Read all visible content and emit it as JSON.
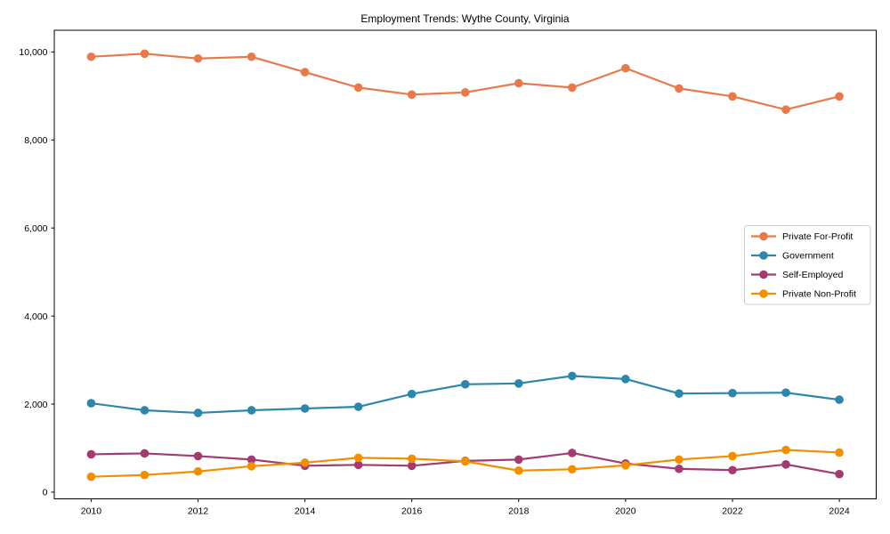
{
  "chart_data": {
    "type": "line",
    "title": "Employment Trends: Wythe County, Virginia",
    "xlabel": "",
    "ylabel": "",
    "x": [
      2010,
      2011,
      2012,
      2013,
      2014,
      2015,
      2016,
      2017,
      2018,
      2019,
      2020,
      2021,
      2022,
      2023,
      2024
    ],
    "series": [
      {
        "name": "Private For-Profit",
        "color": "#E8794B",
        "values": [
          9890,
          9960,
          9850,
          9890,
          9540,
          9190,
          9030,
          9080,
          9290,
          9190,
          9630,
          9170,
          8990,
          8690,
          8990
        ]
      },
      {
        "name": "Government",
        "color": "#2E86AB",
        "values": [
          2020,
          1860,
          1800,
          1860,
          1900,
          1940,
          2230,
          2450,
          2470,
          2640,
          2570,
          2240,
          2250,
          2260,
          2100
        ]
      },
      {
        "name": "Self-Employed",
        "color": "#A23B72",
        "values": [
          860,
          880,
          820,
          740,
          600,
          620,
          600,
          710,
          740,
          890,
          650,
          530,
          500,
          630,
          410
        ]
      },
      {
        "name": "Private Non-Profit",
        "color": "#F18F01",
        "values": [
          350,
          390,
          470,
          590,
          670,
          780,
          760,
          700,
          490,
          520,
          610,
          740,
          820,
          960,
          900
        ]
      }
    ],
    "xtick_values": [
      2010,
      2012,
      2014,
      2016,
      2018,
      2020,
      2022,
      2024
    ],
    "xtick_labels": [
      "2010",
      "2012",
      "2014",
      "2016",
      "2018",
      "2020",
      "2022",
      "2024"
    ],
    "ytick_values": [
      0,
      2000,
      4000,
      6000,
      8000,
      10000
    ],
    "ytick_labels": [
      "0",
      "2,000",
      "4,000",
      "6,000",
      "8,000",
      "10,000"
    ],
    "xlim": [
      2009.31,
      2024.69
    ],
    "ylim": [
      -152,
      10492
    ],
    "grid": false,
    "legend_position": "center right",
    "marker": "circle",
    "line_width": 2.2,
    "marker_radius": 4.8,
    "spine_color": "#000000",
    "background_color": "#ffffff"
  }
}
